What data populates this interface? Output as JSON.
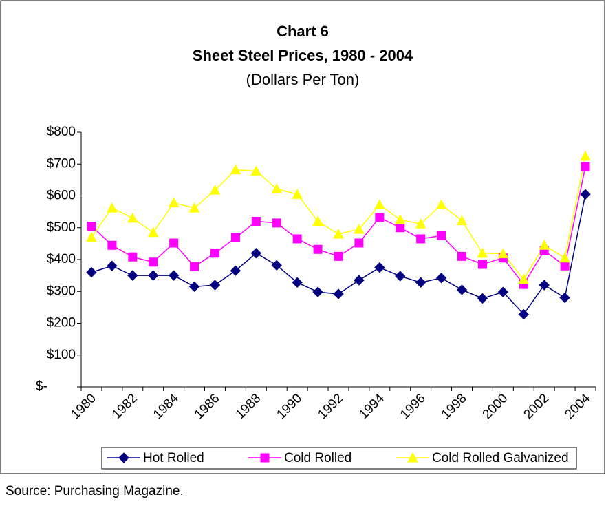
{
  "chart_data": {
    "type": "line",
    "title": "Chart 6",
    "subtitle": "Sheet Steel Prices, 1980 - 2004",
    "units": "(Dollars Per Ton)",
    "source": "Source:  Purchasing Magazine.",
    "categories": [
      "1980",
      null,
      "1982",
      null,
      "1984",
      null,
      "1986",
      null,
      "1988",
      null,
      "1990",
      null,
      "1992",
      null,
      "1994",
      null,
      "1996",
      null,
      "1998",
      null,
      "2000",
      null,
      "2002",
      null,
      "2004"
    ],
    "series": [
      {
        "name": "Hot Rolled",
        "color": "#000080",
        "marker": "diamond",
        "values": [
          360,
          380,
          350,
          350,
          350,
          315,
          320,
          365,
          420,
          382,
          328,
          298,
          292,
          335,
          375,
          348,
          328,
          342,
          305,
          278,
          298,
          228,
          320,
          280,
          605
        ]
      },
      {
        "name": "Cold Rolled",
        "color": "#ff00ff",
        "marker": "square",
        "values": [
          505,
          445,
          408,
          392,
          452,
          378,
          420,
          468,
          520,
          515,
          465,
          432,
          410,
          452,
          532,
          500,
          465,
          475,
          410,
          385,
          405,
          322,
          428,
          380,
          692
        ]
      },
      {
        "name": "Cold Rolled Galvanized",
        "color": "#ffff00",
        "marker": "triangle",
        "values": [
          470,
          562,
          530,
          485,
          578,
          562,
          618,
          682,
          678,
          622,
          605,
          520,
          480,
          495,
          572,
          525,
          512,
          572,
          522,
          420,
          418,
          338,
          445,
          405,
          725
        ]
      }
    ],
    "ylim": [
      0,
      800
    ],
    "yticks": [
      {
        "value": 0,
        "label": "$-"
      },
      {
        "value": 100,
        "label": "$100"
      },
      {
        "value": 200,
        "label": "$200"
      },
      {
        "value": 300,
        "label": "$300"
      },
      {
        "value": 400,
        "label": "$400"
      },
      {
        "value": 500,
        "label": "$500"
      },
      {
        "value": 600,
        "label": "$600"
      },
      {
        "value": 700,
        "label": "$700"
      },
      {
        "value": 800,
        "label": "$800"
      }
    ],
    "grid": false,
    "legend": "bottom"
  }
}
